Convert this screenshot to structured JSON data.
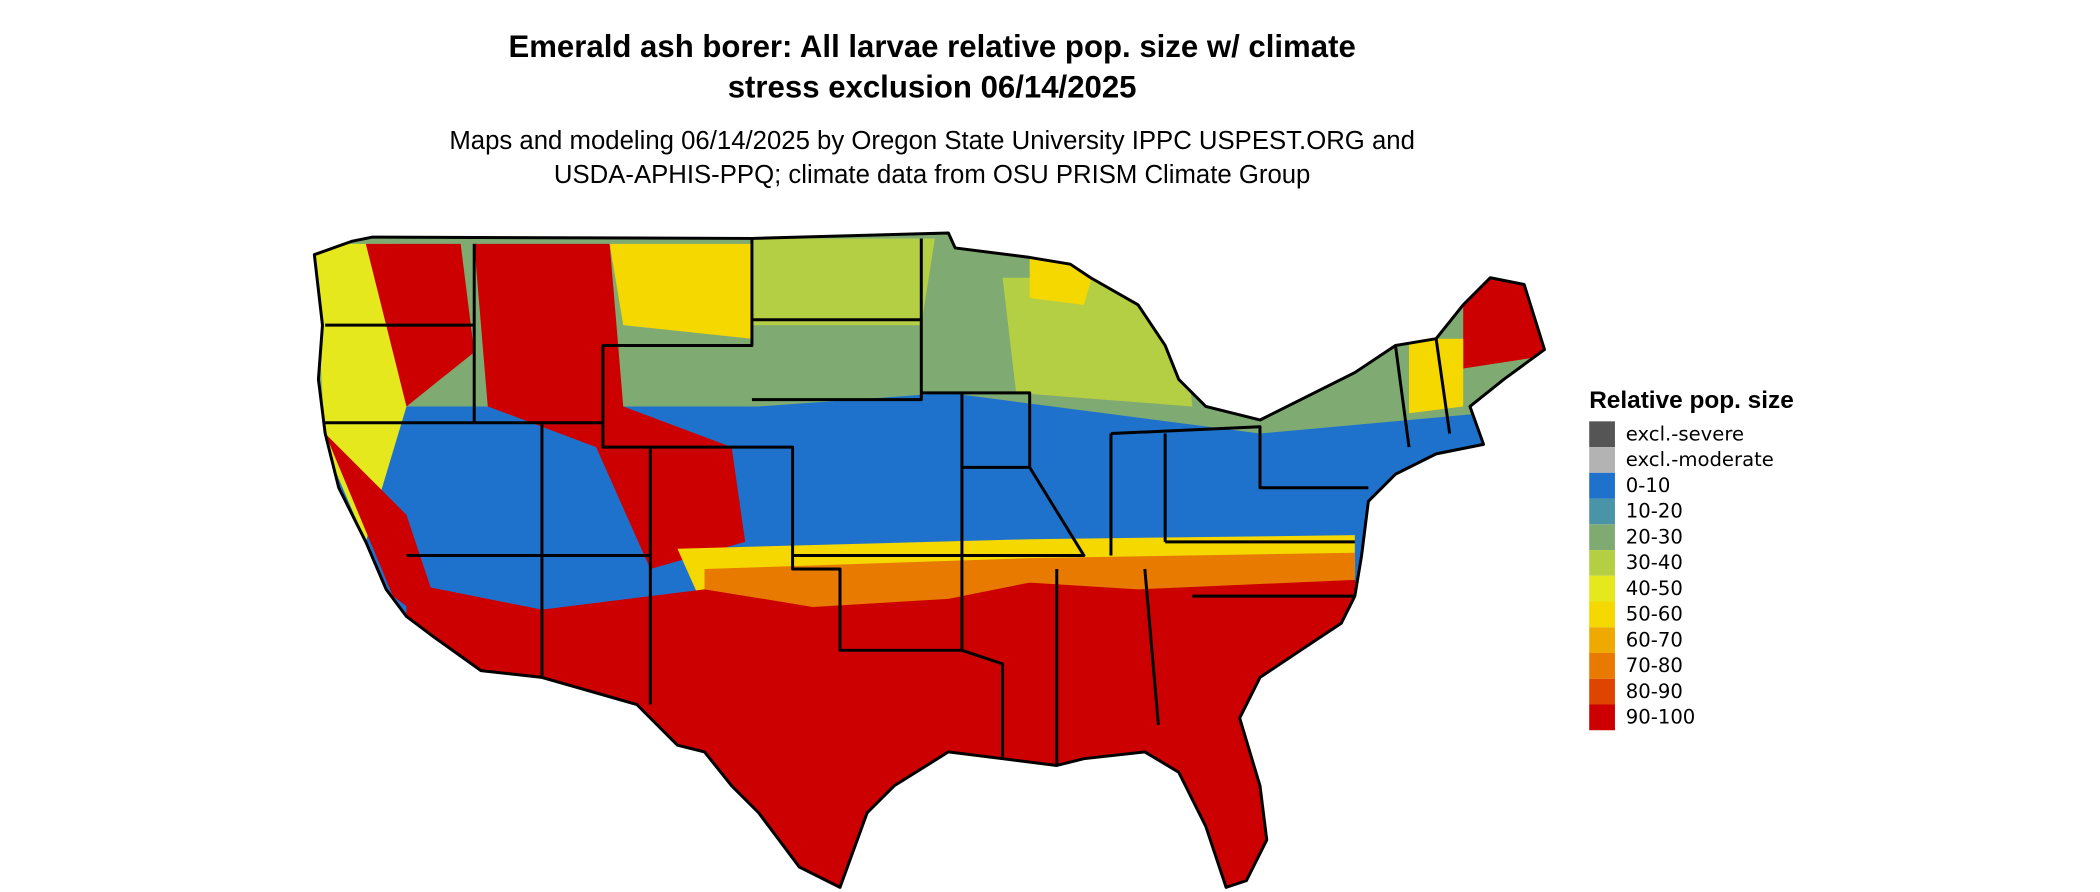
{
  "title": [
    "Emerald ash borer: All larvae relative pop. size w/ climate",
    "stress exclusion 06/14/2025"
  ],
  "subtitle": [
    "Maps and modeling 06/14/2025 by Oregon State University IPPC USPEST.ORG and",
    "USDA-APHIS-PPQ; climate data from OSU PRISM Climate Group"
  ],
  "legend": {
    "title": "Relative pop. size",
    "items": [
      {
        "label": "excl.-severe",
        "color": "#555555"
      },
      {
        "label": "excl.-moderate",
        "color": "#b3b3b3"
      },
      {
        "label": "0-10",
        "color": "#1f72cc"
      },
      {
        "label": "10-20",
        "color": "#4a94a8"
      },
      {
        "label": "20-30",
        "color": "#7fab72"
      },
      {
        "label": "30-40",
        "color": "#b5cf45"
      },
      {
        "label": "40-50",
        "color": "#e4e81c"
      },
      {
        "label": "50-60",
        "color": "#f5d800"
      },
      {
        "label": "60-70",
        "color": "#eeaa00"
      },
      {
        "label": "70-80",
        "color": "#e87a00"
      },
      {
        "label": "80-90",
        "color": "#dd4500"
      },
      {
        "label": "90-100",
        "color": "#cc0000"
      }
    ]
  }
}
